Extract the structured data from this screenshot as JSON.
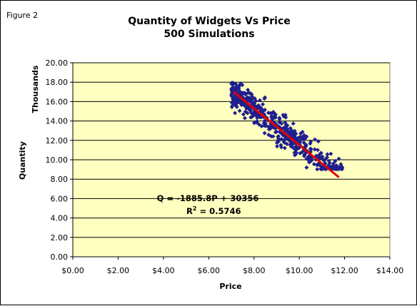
{
  "figure_label": "Figure 2",
  "chart_data": {
    "type": "scatter",
    "title": "Quantity of Widgets Vs Price",
    "subtitle": "500 Simulations",
    "xlabel": "Price",
    "ylabel": "Quantity",
    "ylabel_units": "Thousands",
    "xlim": [
      0,
      14
    ],
    "ylim": [
      0,
      20
    ],
    "x_ticks": [
      0,
      2,
      4,
      6,
      8,
      10,
      12,
      14
    ],
    "x_tick_labels": [
      "$0.00",
      "$2.00",
      "$4.00",
      "$6.00",
      "$8.00",
      "$10.00",
      "$12.00",
      "$14.00"
    ],
    "y_ticks": [
      0,
      2,
      4,
      6,
      8,
      10,
      12,
      14,
      16,
      18,
      20
    ],
    "y_tick_labels": [
      "0.00",
      "2.00",
      "4.00",
      "6.00",
      "8.00",
      "10.00",
      "12.00",
      "14.00",
      "16.00",
      "18.00",
      "20.00"
    ],
    "grid": "horizontal",
    "plot_background": "#FFFFC0",
    "marker_color": "#1F1F8F",
    "trendline_color": "#E00000",
    "trendline": {
      "x": [
        7.1,
        11.75
      ],
      "y": [
        17.0,
        8.2
      ]
    },
    "annotation": {
      "equation": "Q = -1885.8P + 30356",
      "r2_prefix": "R",
      "r2_exp": "2",
      "r2_value": " = 0.5746"
    },
    "scatter_summary": {
      "n": 500,
      "x_range": [
        7.0,
        11.9
      ],
      "y_range": [
        9.0,
        18.0
      ]
    }
  }
}
